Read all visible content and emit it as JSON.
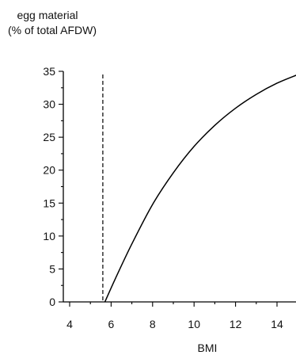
{
  "chart_data": {
    "type": "line",
    "ylabel_lines": [
      "egg material",
      "(% of total AFDW)"
    ],
    "xlabel": "BMI",
    "xlim": [
      3.6,
      15
    ],
    "ylim": [
      0,
      35
    ],
    "x_ticks": [
      4,
      6,
      8,
      10,
      12,
      14
    ],
    "y_ticks": [
      0,
      5,
      10,
      15,
      20,
      25,
      30,
      35
    ],
    "series": [
      {
        "x": [
          5.7,
          6.2,
          7,
          8,
          9,
          10,
          11,
          12,
          13,
          14,
          15
        ],
        "values": [
          0,
          3.5,
          8.8,
          14.8,
          19.6,
          23.6,
          26.8,
          29.4,
          31.5,
          33.2,
          34.5
        ]
      }
    ],
    "reference_line": {
      "x": 5.6,
      "style": "dashed"
    }
  }
}
